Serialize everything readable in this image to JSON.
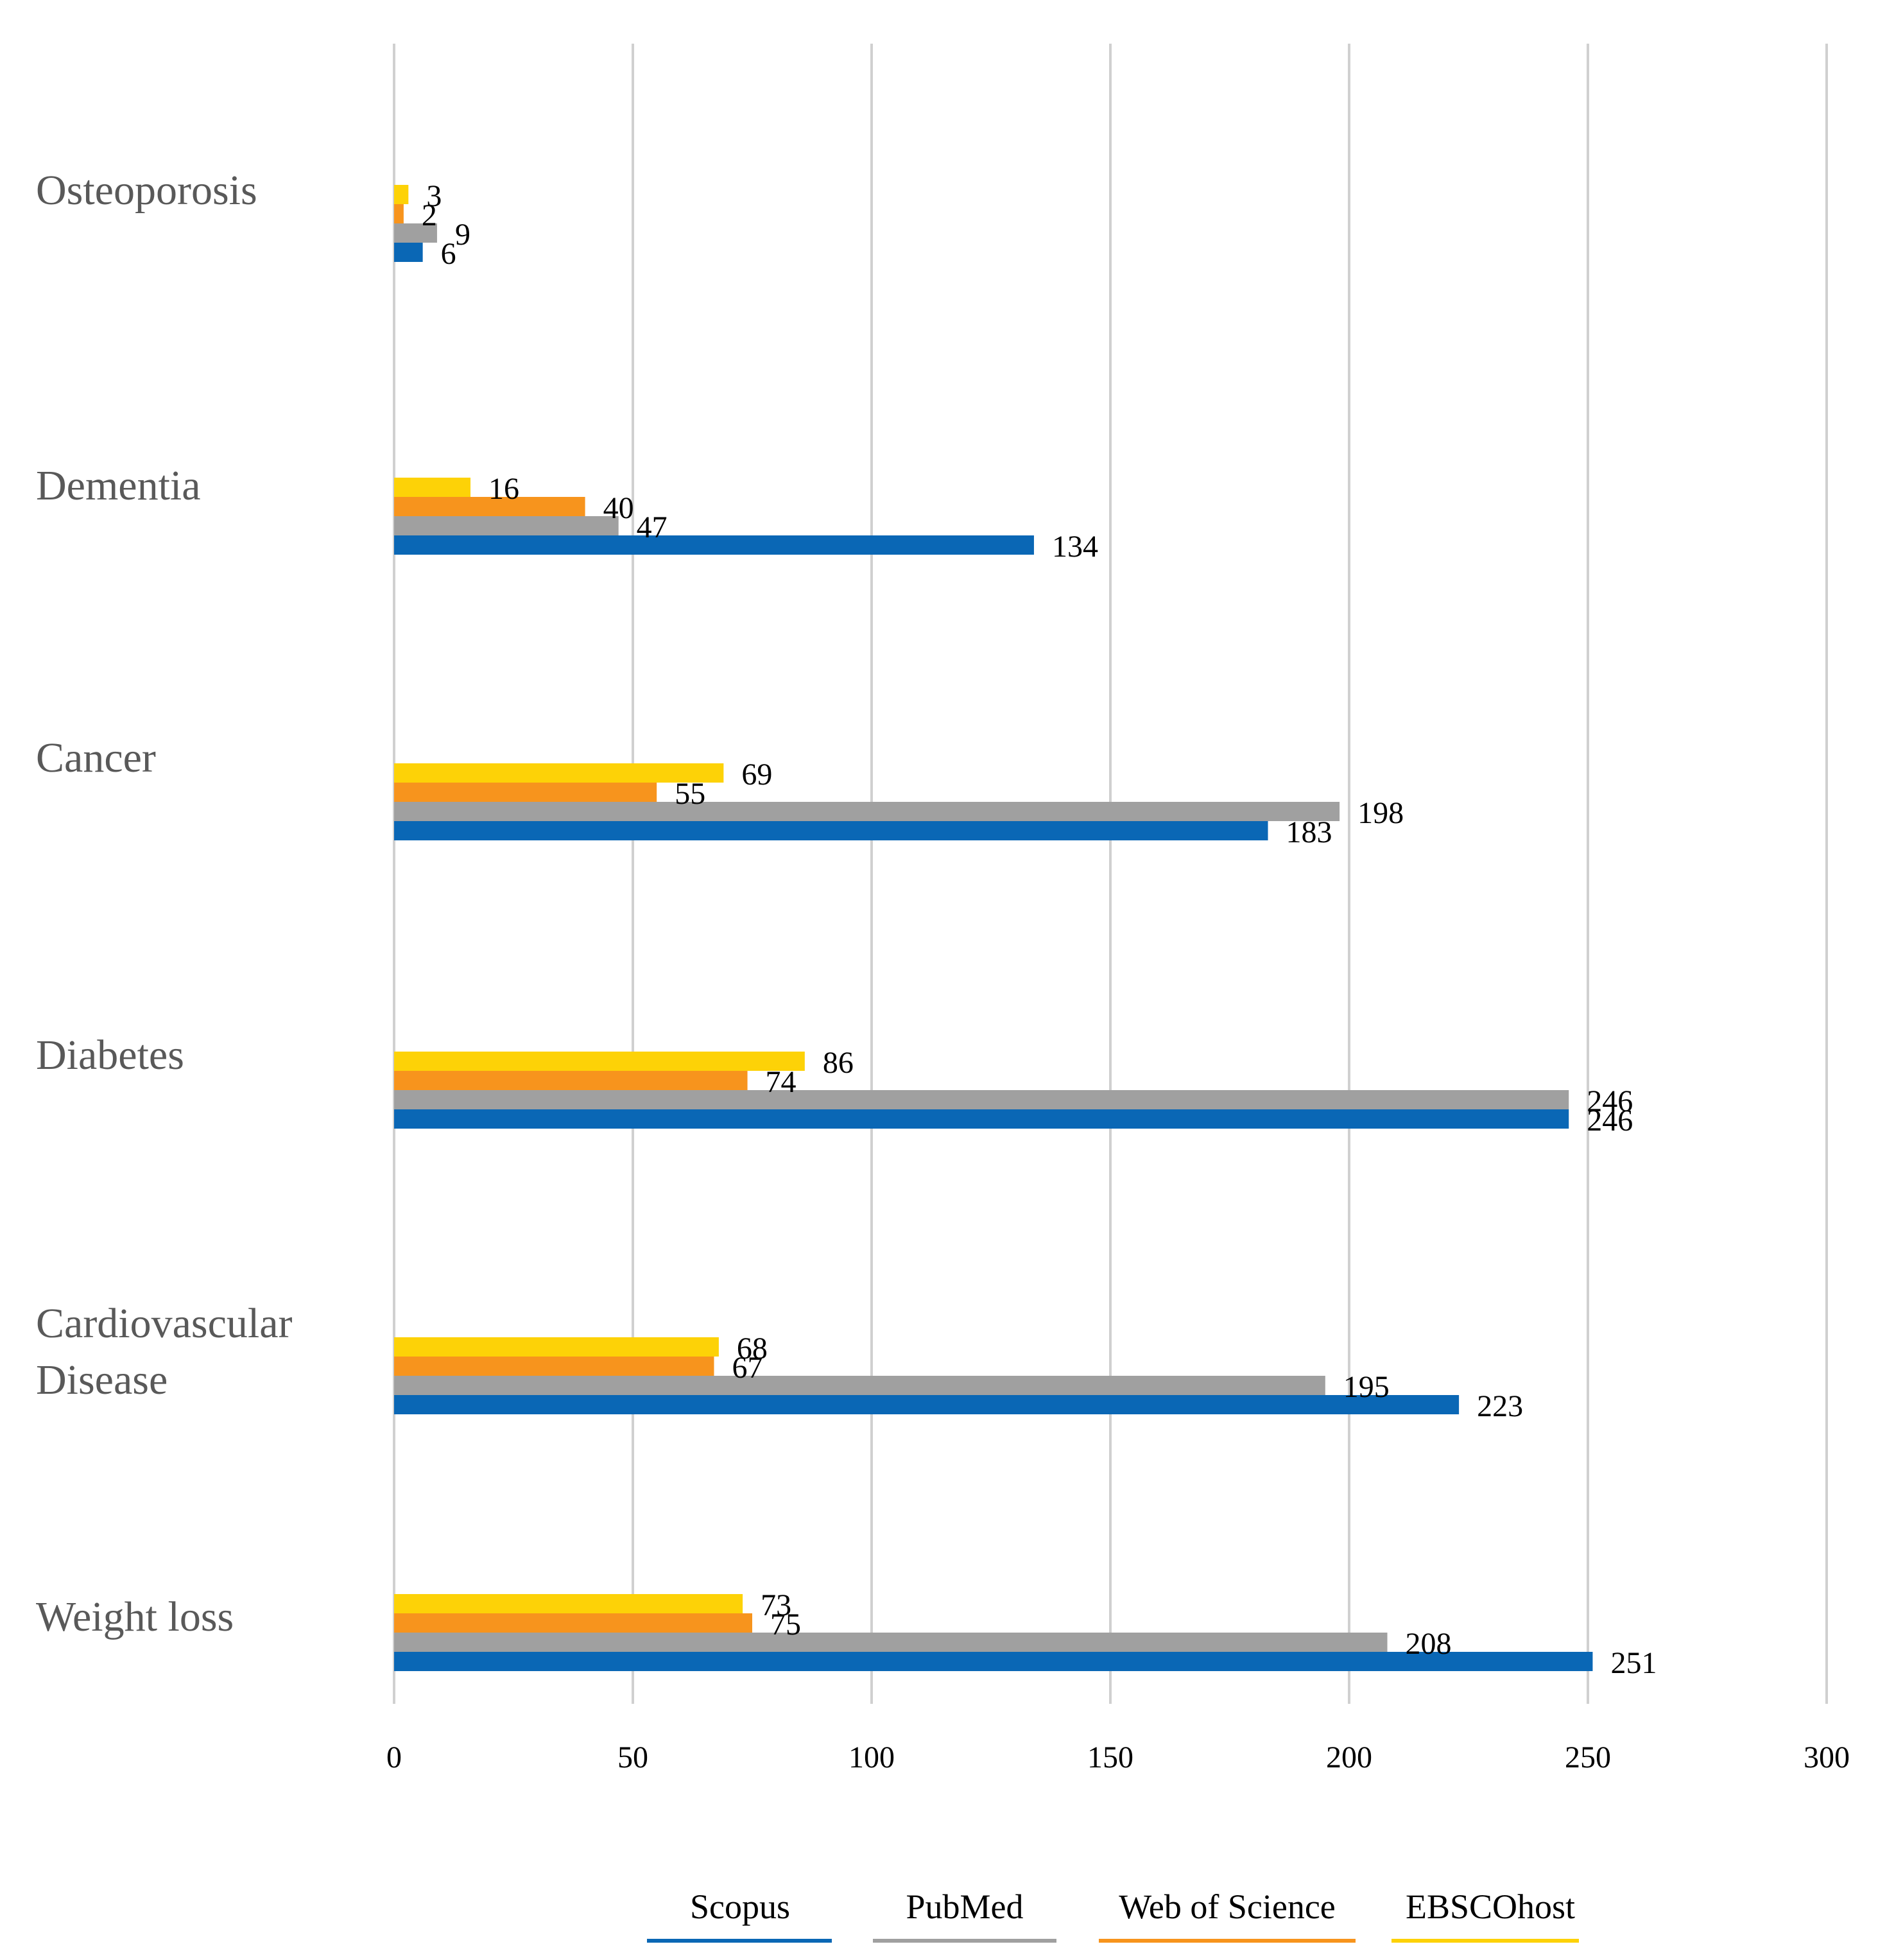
{
  "chart_data": {
    "type": "bar",
    "orientation": "horizontal",
    "categories": [
      "Osteoporosis",
      "Dementia",
      "Cancer",
      "Diabetes",
      "Cardiovascular Disease",
      "Weight loss"
    ],
    "category_lines": [
      [
        "Osteoporosis"
      ],
      [
        "Dementia"
      ],
      [
        "Cancer"
      ],
      [
        "Diabetes"
      ],
      [
        "Cardiovascular",
        "Disease"
      ],
      [
        "Weight loss"
      ]
    ],
    "series": [
      {
        "name": "Scopus",
        "color": "#0a67b5",
        "values": [
          6,
          134,
          183,
          246,
          223,
          251
        ]
      },
      {
        "name": "PubMed",
        "color": "#a0a0a0",
        "values": [
          9,
          47,
          198,
          246,
          195,
          208
        ]
      },
      {
        "name": "Web of Science",
        "color": "#f7941d",
        "values": [
          2,
          40,
          55,
          74,
          67,
          75
        ]
      },
      {
        "name": "EBSCOhost",
        "color": "#fdd207",
        "values": [
          3,
          16,
          69,
          86,
          68,
          73
        ]
      }
    ],
    "x_ticks": [
      "0",
      "50",
      "100",
      "150",
      "200",
      "250",
      "300"
    ],
    "xlim": [
      0,
      300
    ],
    "grid": true,
    "legend_position": "bottom"
  }
}
